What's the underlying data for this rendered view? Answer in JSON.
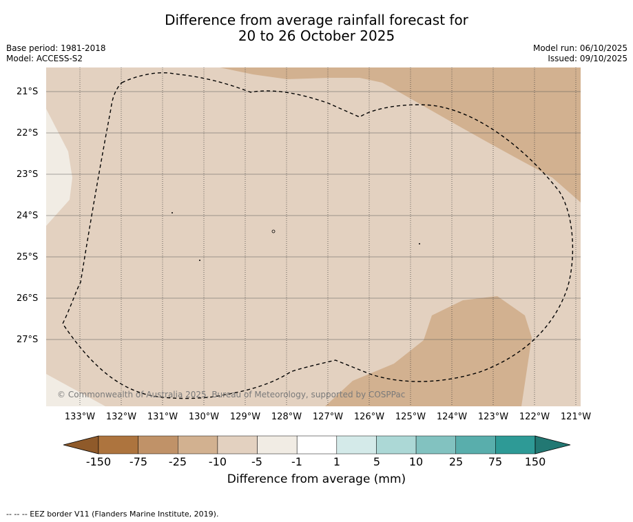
{
  "title": {
    "line1": "Difference from average rainfall forecast for",
    "line2": "20 to 26 October 2025"
  },
  "meta_left": {
    "base_period": "Base period: 1981-2018",
    "model": "Model: ACCESS-S2"
  },
  "meta_right": {
    "model_run": "Model run: 06/10/2025",
    "issued": "Issued: 09/10/2025"
  },
  "map": {
    "lat_labels": [
      "21°S",
      "22°S",
      "23°S",
      "24°S",
      "25°S",
      "26°S",
      "27°S"
    ],
    "lon_labels": [
      "133°W",
      "132°W",
      "131°W",
      "130°W",
      "129°W",
      "128°W",
      "127°W",
      "126°W",
      "125°W",
      "124°W",
      "123°W",
      "122°W",
      "121°W"
    ],
    "copyright": "© Commonwealth of Australia 2025, Bureau of Meteorology, supported by COSPPac",
    "colors": {
      "background": "#e3d1c0",
      "dry_zone": "#d2b190",
      "near_average": "#f1ece4",
      "grid": "#555555"
    }
  },
  "colorbar": {
    "title": "Difference from average (mm)",
    "labels": [
      "-150",
      "-75",
      "-25",
      "-10",
      "-5",
      "-1",
      "1",
      "5",
      "10",
      "25",
      "75",
      "150"
    ],
    "colors": [
      "#8f5a2a",
      "#ad743e",
      "#c09268",
      "#d2b190",
      "#e3d1c0",
      "#f1ece4",
      "#ffffff",
      "#d4eae9",
      "#acd8d6",
      "#82c2c0",
      "#59aeac",
      "#2e9a96",
      "#227873"
    ]
  },
  "footnote": "-- -- -- EEZ border V11 (Flanders Marine Institute, 2019)."
}
